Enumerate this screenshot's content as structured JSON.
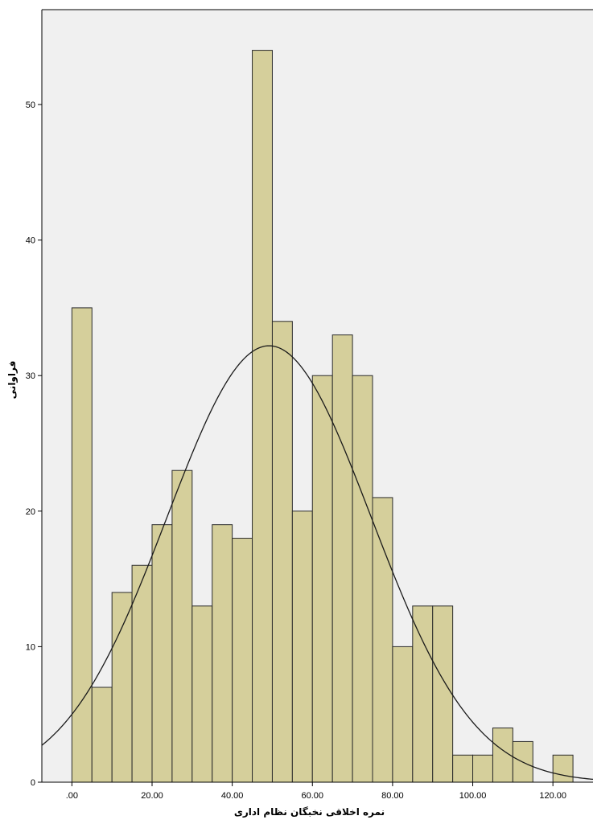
{
  "chart_data": {
    "type": "bar",
    "subtype": "histogram",
    "title": "",
    "xlabel": "نمره اخلاقی نخبگان نظام اداری",
    "ylabel": "فراوانی",
    "xlim": [
      -7.5,
      130
    ],
    "ylim": [
      0,
      57
    ],
    "bin_width": 5,
    "x_ticks": [
      0,
      20,
      40,
      60,
      80,
      100,
      120
    ],
    "x_tick_labels": [
      ".00",
      "20.00",
      "40.00",
      "60.00",
      "80.00",
      "100.00",
      "120.00"
    ],
    "y_ticks": [
      0,
      10,
      20,
      30,
      40,
      50
    ],
    "y_tick_labels": [
      "0",
      "10",
      "20",
      "30",
      "40",
      "50"
    ],
    "bins": [
      {
        "start": 0,
        "end": 5,
        "count": 35
      },
      {
        "start": 5,
        "end": 10,
        "count": 7
      },
      {
        "start": 10,
        "end": 15,
        "count": 14
      },
      {
        "start": 15,
        "end": 20,
        "count": 16
      },
      {
        "start": 20,
        "end": 25,
        "count": 19
      },
      {
        "start": 25,
        "end": 30,
        "count": 23
      },
      {
        "start": 30,
        "end": 35,
        "count": 13
      },
      {
        "start": 35,
        "end": 40,
        "count": 19
      },
      {
        "start": 40,
        "end": 45,
        "count": 18
      },
      {
        "start": 45,
        "end": 50,
        "count": 54
      },
      {
        "start": 50,
        "end": 55,
        "count": 34
      },
      {
        "start": 55,
        "end": 60,
        "count": 20
      },
      {
        "start": 60,
        "end": 65,
        "count": 30
      },
      {
        "start": 65,
        "end": 70,
        "count": 33
      },
      {
        "start": 70,
        "end": 75,
        "count": 30
      },
      {
        "start": 75,
        "end": 80,
        "count": 21
      },
      {
        "start": 80,
        "end": 85,
        "count": 10
      },
      {
        "start": 85,
        "end": 90,
        "count": 13
      },
      {
        "start": 90,
        "end": 95,
        "count": 13
      },
      {
        "start": 95,
        "end": 100,
        "count": 2
      },
      {
        "start": 100,
        "end": 105,
        "count": 2
      },
      {
        "start": 105,
        "end": 110,
        "count": 4
      },
      {
        "start": 110,
        "end": 115,
        "count": 3
      },
      {
        "start": 120,
        "end": 125,
        "count": 2
      }
    ],
    "normal_curve": {
      "mean": 49.2,
      "sd": 25.5,
      "peak": 32.2
    },
    "grid": false,
    "legend": "none",
    "colors": {
      "bar_fill": "#d5cf9b",
      "bar_stroke": "#2b2b2b",
      "plot_background": "#f0f0f0",
      "curve": "#1a1a1a",
      "axis": "#000000"
    }
  }
}
